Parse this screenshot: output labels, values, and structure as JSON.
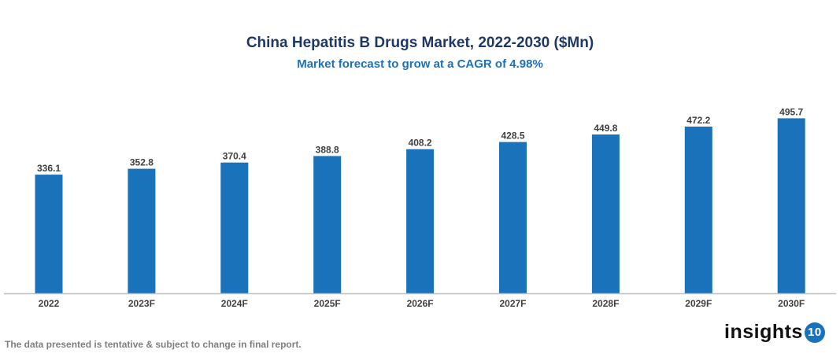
{
  "chart_data": {
    "type": "bar",
    "title": "China Hepatitis B Drugs Market, 2022-2030 ($Mn)",
    "subtitle": "Market forecast to grow at a CAGR of 4.98%",
    "categories": [
      "2022",
      "2023F",
      "2024F",
      "2025F",
      "2026F",
      "2027F",
      "2028F",
      "2029F",
      "2030F"
    ],
    "values": [
      336.1,
      352.8,
      370.4,
      388.8,
      408.2,
      428.5,
      449.8,
      472.2,
      495.7
    ],
    "value_labels": [
      "336.1",
      "352.8",
      "370.4",
      "388.8",
      "408.2",
      "428.5",
      "449.8",
      "472.2",
      "495.7"
    ],
    "xlabel": "",
    "ylabel": "",
    "ylim": [
      0,
      500
    ],
    "grid": false,
    "bar_color": "#1a72bb"
  },
  "footer": "The data presented is tentative & subject to change in final report.",
  "logo": {
    "text": "insights",
    "badge": "10"
  }
}
